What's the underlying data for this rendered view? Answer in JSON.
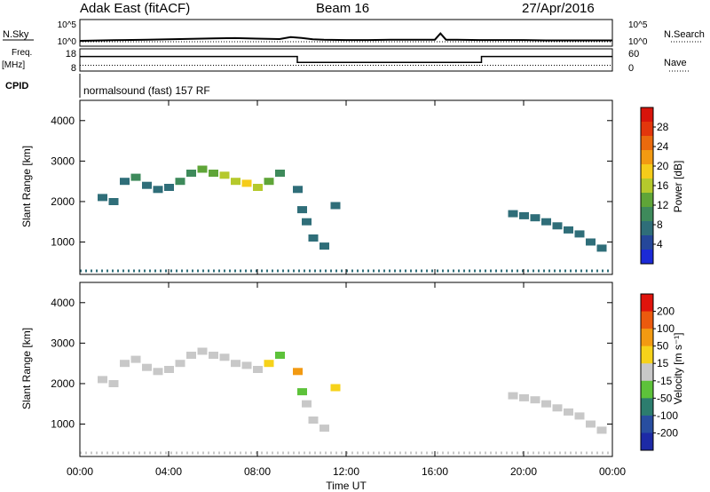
{
  "header": {
    "station": "Adak East (fitACF)",
    "beam": "Beam 16",
    "date": "27/Apr/2016"
  },
  "top_panels": {
    "nsky_label": "N.Sky",
    "nsearch_label": "N.Search",
    "noise_ticks": [
      "10^5",
      "10^0"
    ],
    "freq_label": "Freq.",
    "freq_unit": "[MHz]",
    "freq_ticks": [
      "18",
      "8"
    ],
    "nave_label": "Nave",
    "nave_ticks": [
      "60",
      "0"
    ],
    "cpid_label": "CPID",
    "cpid_text": "normalsound (fast) 157 RF"
  },
  "colorbars": {
    "power": {
      "label": "Power [dB]",
      "ticks": [
        "28",
        "24",
        "20",
        "16",
        "12",
        "8",
        "4"
      ],
      "colors": [
        "#1b2ad6",
        "#25479a",
        "#2f6e79",
        "#3e8a5b",
        "#5fa538",
        "#b5c92c",
        "#f5cc1a",
        "#f29a12",
        "#ea6a0e",
        "#e2360c",
        "#d8140b"
      ]
    },
    "velocity": {
      "label": "Velocity [m s⁻¹]",
      "ticks": [
        "200",
        "100",
        "50",
        "15",
        "-15",
        "-50",
        "-100",
        "-200"
      ],
      "colors": [
        "#1d2aa6",
        "#284ea0",
        "#2c7d6e",
        "#5dc23a",
        "#c8c8c8",
        "#f6d21a",
        "#f29a12",
        "#eb5a0e",
        "#e0140c"
      ]
    }
  },
  "axes": {
    "ylabel": "Slant Range [km]",
    "xlabel": "Time UT",
    "x_ticks": [
      "00:00",
      "04:00",
      "08:00",
      "12:00",
      "16:00",
      "20:00",
      "00:00"
    ],
    "y_ticks": [
      "4000",
      "3000",
      "2000",
      "1000"
    ]
  },
  "chart_data": [
    {
      "type": "line",
      "title": "N.Sky / N.Search",
      "x_unit": "hours UT",
      "xlim": [
        0,
        24
      ],
      "yscale": "log",
      "y_ticks": [
        1,
        100000
      ],
      "series": [
        {
          "x": [
            0,
            1,
            2,
            3,
            4,
            5,
            6,
            7,
            8,
            9,
            9.5,
            10,
            10.5,
            11,
            12,
            13,
            14,
            15,
            16,
            16.25,
            16.5,
            17,
            18,
            19,
            20,
            21,
            22,
            23,
            24
          ],
          "y": [
            3,
            4,
            5,
            6,
            8,
            10,
            14,
            16,
            12,
            9,
            30,
            18,
            8,
            6,
            5,
            5,
            6,
            6,
            6,
            300,
            6,
            6,
            5,
            5,
            5,
            4,
            4,
            4,
            4
          ]
        }
      ]
    },
    {
      "type": "line",
      "title": "Freq. / Nave",
      "xlim": [
        0,
        24
      ],
      "series": [
        {
          "name": "Freq. [MHz]",
          "ylim": [
            8,
            18
          ],
          "x": [
            0,
            9.8,
            9.8,
            18.1,
            18.1,
            24
          ],
          "y": [
            15,
            15,
            12,
            12,
            15,
            15
          ]
        },
        {
          "name": "Nave",
          "ylim": [
            0,
            60
          ],
          "x": [
            0,
            24
          ],
          "y": [
            15,
            15
          ]
        }
      ]
    },
    {
      "type": "scatter",
      "title": "Power [dB]",
      "xlabel": "Time UT",
      "ylabel": "Slant Range [km]",
      "xlim": [
        0,
        24
      ],
      "ylim": [
        200,
        4500
      ],
      "series": [
        {
          "x": [
            1.0,
            1.5,
            2.0,
            2.5,
            3.0,
            3.5,
            4.0,
            4.5,
            5.0,
            5.5,
            6.0,
            6.5,
            7.0,
            7.5,
            8.0,
            8.5,
            9.0
          ],
          "y": [
            2100,
            2000,
            2500,
            2600,
            2400,
            2300,
            2350,
            2500,
            2700,
            2800,
            2700,
            2650,
            2500,
            2450,
            2350,
            2500,
            2700
          ],
          "values": [
            6,
            6,
            8,
            9,
            8,
            7,
            8,
            9,
            10,
            12,
            13,
            15,
            16,
            18,
            16,
            12,
            10
          ]
        },
        {
          "x": [
            9.8,
            10.0,
            10.2,
            10.5,
            11.0,
            11.5
          ],
          "y": [
            2300,
            1800,
            1500,
            1100,
            900,
            1900
          ],
          "values": [
            8,
            7,
            7,
            6,
            6,
            6
          ]
        },
        {
          "x": [
            19.5,
            20.0,
            20.5,
            21.0,
            21.5,
            22.0,
            22.5,
            23.0,
            23.5
          ],
          "y": [
            1700,
            1650,
            1600,
            1500,
            1400,
            1300,
            1200,
            1000,
            850
          ],
          "values": [
            7,
            7,
            6,
            6,
            6,
            6,
            6,
            6,
            6
          ]
        }
      ]
    },
    {
      "type": "scatter",
      "title": "Velocity [m s^-1]",
      "xlabel": "Time UT",
      "ylabel": "Slant Range [km]",
      "xlim": [
        0,
        24
      ],
      "ylim": [
        200,
        4500
      ],
      "series": [
        {
          "x": [
            1.0,
            1.5,
            2.0,
            2.5,
            3.0,
            3.5,
            4.0,
            4.5,
            5.0,
            5.5,
            6.0,
            6.5,
            7.0,
            7.5,
            8.0,
            8.5,
            9.0
          ],
          "y": [
            2100,
            2000,
            2500,
            2600,
            2400,
            2300,
            2350,
            2500,
            2700,
            2800,
            2700,
            2650,
            2500,
            2450,
            2350,
            2500,
            2700
          ],
          "values": [
            0,
            0,
            0,
            5,
            -5,
            0,
            10,
            -10,
            0,
            5,
            0,
            -5,
            0,
            0,
            5,
            -20,
            20
          ]
        },
        {
          "x": [
            9.8,
            10.0,
            10.2,
            10.5,
            11.0,
            11.5
          ],
          "y": [
            2300,
            1800,
            1500,
            1100,
            900,
            1900
          ],
          "values": [
            -60,
            30,
            0,
            0,
            0,
            -20
          ]
        },
        {
          "x": [
            19.5,
            20.0,
            20.5,
            21.0,
            21.5,
            22.0,
            22.5,
            23.0,
            23.5
          ],
          "y": [
            1700,
            1650,
            1600,
            1500,
            1400,
            1300,
            1200,
            1000,
            850
          ],
          "values": [
            0,
            0,
            0,
            0,
            0,
            0,
            0,
            0,
            0
          ]
        }
      ]
    }
  ]
}
